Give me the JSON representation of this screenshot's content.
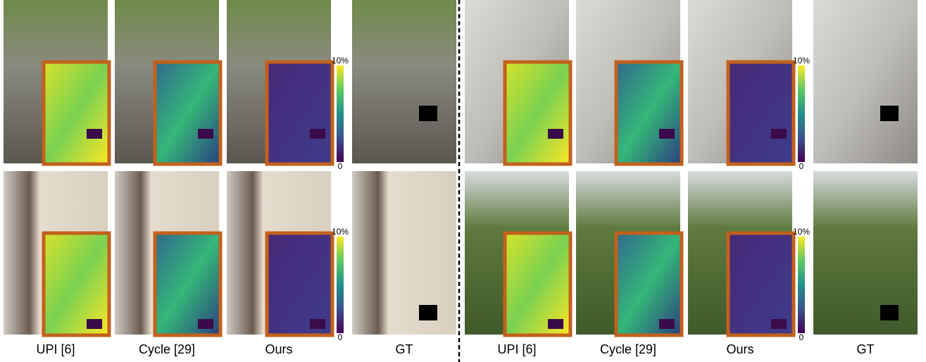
{
  "panels": [
    {
      "captions": [
        "UPI [6]",
        "Cycle [29]",
        "Ours",
        "GT"
      ],
      "colorbar_max": "10%",
      "colorbar_min": "0"
    },
    {
      "captions": [
        "UPI [6]",
        "Cycle [29]",
        "Ours",
        "GT"
      ],
      "colorbar_max": "10%",
      "colorbar_min": "0"
    }
  ]
}
